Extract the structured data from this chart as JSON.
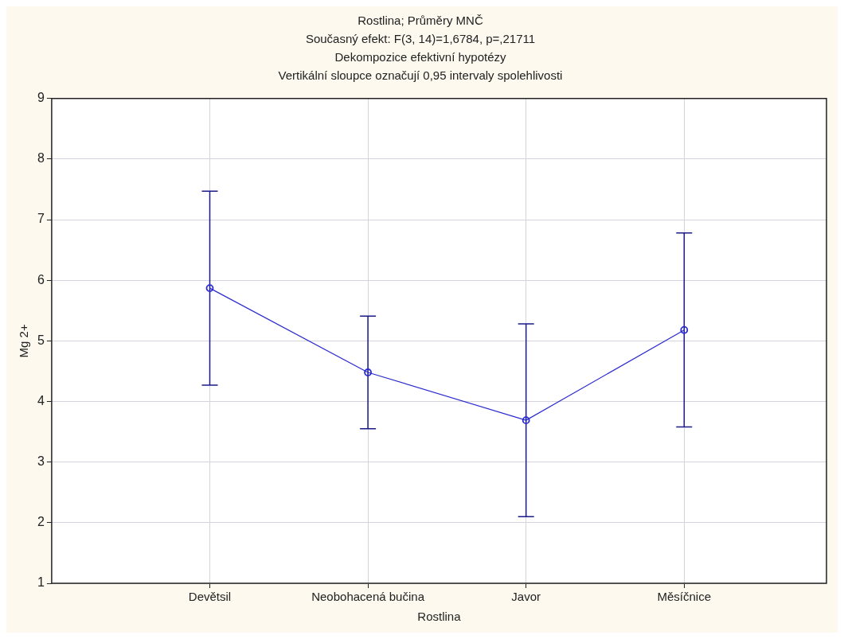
{
  "chart_data": {
    "type": "line",
    "title": "Rostlina; Průměry MNČ",
    "subtitle": "Současný efekt: F(3, 14)=1,6784, p=,21711",
    "annotations": [
      "Dekompozice efektivní hypotézy",
      "Vertikální sloupce označují 0,95 intervaly spolehlivosti"
    ],
    "xlabel": "Rostlina",
    "ylabel": "Mg 2+",
    "categories": [
      "Devětsil",
      "Neobohacená bučina",
      "Javor",
      "Měsíčnice"
    ],
    "series": [
      {
        "color": "#2a2ad0",
        "values": [
          5.87,
          4.48,
          3.69,
          5.18
        ],
        "errors": [
          1.6,
          0.93,
          1.59,
          1.6
        ]
      }
    ],
    "ylim": [
      1,
      9
    ],
    "yticks": [
      1,
      2,
      3,
      4,
      5,
      6,
      7,
      8,
      9
    ],
    "grid": true,
    "legend": false,
    "marker": "circle",
    "line_style": "solid"
  }
}
